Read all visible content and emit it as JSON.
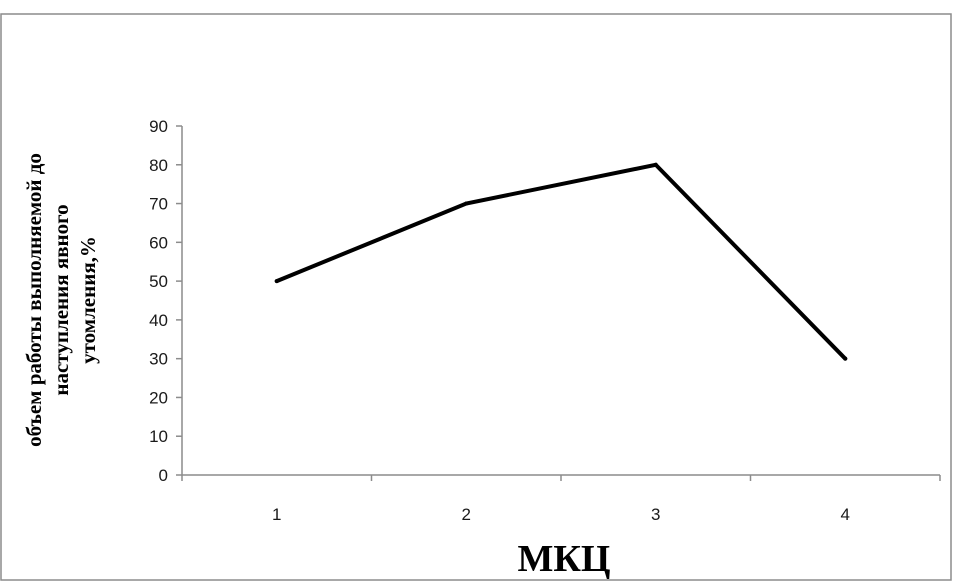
{
  "chart_data": {
    "type": "line",
    "title": "",
    "xlabel": "МКЦ",
    "ylabel_lines": [
      "объем работы выполняемой до",
      "наступления явного",
      "утомления,%"
    ],
    "categories": [
      "1",
      "2",
      "3",
      "4"
    ],
    "series": [
      {
        "values": [
          50,
          70,
          80,
          30
        ]
      }
    ],
    "ylim": [
      0,
      90
    ],
    "yticks": [
      0,
      10,
      20,
      30,
      40,
      50,
      60,
      70,
      80,
      90
    ],
    "grid": false,
    "legend": "none",
    "colors": {
      "line": "#000000",
      "axis": "#8c8c8c",
      "frame": "#8c8c8c",
      "text": "#1a1a1a"
    }
  }
}
